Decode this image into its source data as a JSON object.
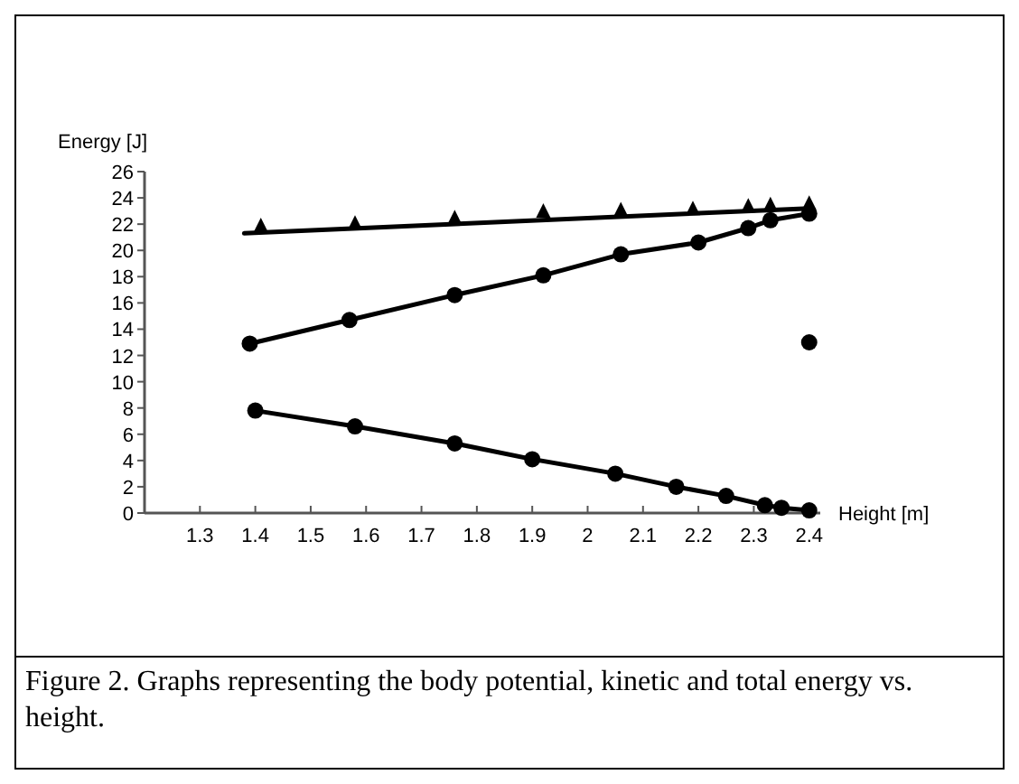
{
  "chart_data": {
    "type": "line",
    "xlabel": "Height [m]",
    "ylabel": "Energy [J]",
    "xlim": [
      1.2,
      2.42
    ],
    "xticks": [
      1.3,
      1.4,
      1.5,
      1.6,
      1.7,
      1.8,
      1.9,
      2,
      2.1,
      2.2,
      2.3,
      2.4
    ],
    "ylim": [
      0,
      26
    ],
    "yticks": [
      0,
      2,
      4,
      6,
      8,
      10,
      12,
      14,
      16,
      18,
      20,
      22,
      24,
      26
    ],
    "grid": false,
    "series": [
      {
        "marker": "circle",
        "color": "#000000",
        "x": [
          1.39,
          1.57,
          1.76,
          1.92,
          2.06,
          2.2,
          2.29,
          2.33,
          2.4
        ],
        "values": [
          12.9,
          14.7,
          16.6,
          18.1,
          19.7,
          20.6,
          21.7,
          22.3,
          22.8
        ]
      },
      {
        "marker": "circle",
        "color": "#000000",
        "x": [
          1.4,
          1.58,
          1.76,
          1.9,
          2.05,
          2.16,
          2.25,
          2.32,
          2.35,
          2.39,
          2.4
        ],
        "values": [
          7.8,
          6.6,
          5.3,
          4.1,
          3.0,
          2.0,
          1.3,
          0.6,
          0.4,
          null,
          0.2
        ]
      },
      {
        "type": "scatter",
        "marker": "triangle",
        "color": "#000000",
        "x": [
          1.41,
          1.58,
          1.76,
          1.92,
          2.06,
          2.19,
          2.29,
          2.33,
          2.4
        ],
        "values": [
          21.8,
          22.0,
          22.4,
          22.9,
          23.0,
          23.1,
          23.3,
          23.4,
          23.5
        ]
      },
      {
        "type": "line",
        "marker": "none",
        "color": "#000000",
        "x": [
          1.38,
          2.4
        ],
        "values": [
          21.3,
          23.2
        ]
      },
      {
        "type": "scatter",
        "marker": "circle",
        "color": "#000000",
        "x": [
          2.4
        ],
        "values": [
          13.0
        ]
      }
    ],
    "annotations": [
      "Figure 2. Graphs representing the body potential, kinetic and total energy vs. height."
    ]
  }
}
